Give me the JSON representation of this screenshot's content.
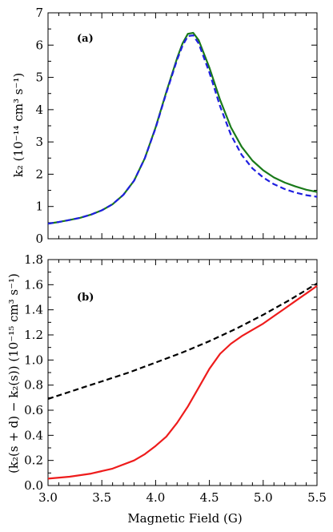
{
  "chart_data": [
    {
      "type": "line",
      "panel_tag": "(a)",
      "ylabel": "k₂ (10⁻¹⁴ cm³ s⁻¹)",
      "xlim": [
        3.0,
        5.5
      ],
      "ylim": [
        0,
        7
      ],
      "yticks": [
        "0",
        "1",
        "2",
        "3",
        "4",
        "5",
        "6",
        "7"
      ],
      "grid": false,
      "series": [
        {
          "color": "#1a7a1a",
          "style": "solid",
          "x": [
            3.0,
            3.1,
            3.2,
            3.3,
            3.4,
            3.5,
            3.6,
            3.7,
            3.8,
            3.9,
            4.0,
            4.1,
            4.2,
            4.25,
            4.3,
            4.35,
            4.4,
            4.5,
            4.6,
            4.7,
            4.8,
            4.9,
            5.0,
            5.1,
            5.2,
            5.3,
            5.4,
            5.5
          ],
          "y": [
            0.47,
            0.52,
            0.58,
            0.65,
            0.75,
            0.88,
            1.07,
            1.36,
            1.8,
            2.5,
            3.45,
            4.55,
            5.6,
            6.05,
            6.35,
            6.38,
            6.15,
            5.3,
            4.3,
            3.45,
            2.85,
            2.42,
            2.12,
            1.9,
            1.74,
            1.62,
            1.52,
            1.45
          ]
        },
        {
          "color": "#1f1fe0",
          "style": "dashed",
          "x": [
            3.0,
            3.1,
            3.2,
            3.3,
            3.4,
            3.5,
            3.6,
            3.7,
            3.8,
            3.9,
            4.0,
            4.1,
            4.2,
            4.25,
            4.3,
            4.35,
            4.4,
            4.5,
            4.6,
            4.7,
            4.8,
            4.9,
            5.0,
            5.1,
            5.2,
            5.3,
            5.4,
            5.5
          ],
          "y": [
            0.47,
            0.52,
            0.58,
            0.65,
            0.75,
            0.88,
            1.07,
            1.36,
            1.8,
            2.5,
            3.43,
            4.52,
            5.55,
            5.98,
            6.28,
            6.3,
            6.05,
            5.15,
            4.1,
            3.22,
            2.6,
            2.18,
            1.9,
            1.69,
            1.54,
            1.43,
            1.35,
            1.3
          ]
        }
      ]
    },
    {
      "type": "line",
      "panel_tag": "(b)",
      "ylabel": "(k₂(s + d) − k₂(s)) (10⁻¹⁵ cm³ s⁻¹)",
      "xlabel": "Magnetic Field (G)",
      "xlim": [
        3.0,
        5.5
      ],
      "ylim": [
        0.0,
        1.8
      ],
      "xticks": [
        "3.0",
        "3.5",
        "4.0",
        "4.5",
        "5.0",
        "5.5"
      ],
      "yticks": [
        "0.0",
        "0.2",
        "0.4",
        "0.6",
        "0.8",
        "1.0",
        "1.2",
        "1.4",
        "1.6",
        "1.8"
      ],
      "grid": false,
      "series": [
        {
          "color": "#000000",
          "style": "dashed",
          "x": [
            3.0,
            3.25,
            3.5,
            3.75,
            4.0,
            4.25,
            4.5,
            4.75,
            5.0,
            5.25,
            5.5
          ],
          "y": [
            0.69,
            0.76,
            0.83,
            0.9,
            0.98,
            1.06,
            1.15,
            1.25,
            1.36,
            1.48,
            1.61
          ]
        },
        {
          "color": "#ee1c1c",
          "style": "solid",
          "x": [
            3.0,
            3.2,
            3.4,
            3.6,
            3.8,
            3.9,
            4.0,
            4.1,
            4.2,
            4.3,
            4.4,
            4.5,
            4.6,
            4.7,
            4.8,
            4.9,
            5.0,
            5.1,
            5.2,
            5.3,
            5.4,
            5.5
          ],
          "y": [
            0.055,
            0.07,
            0.095,
            0.135,
            0.2,
            0.25,
            0.315,
            0.39,
            0.5,
            0.63,
            0.78,
            0.93,
            1.05,
            1.13,
            1.19,
            1.24,
            1.29,
            1.35,
            1.41,
            1.47,
            1.53,
            1.59
          ]
        }
      ]
    }
  ]
}
